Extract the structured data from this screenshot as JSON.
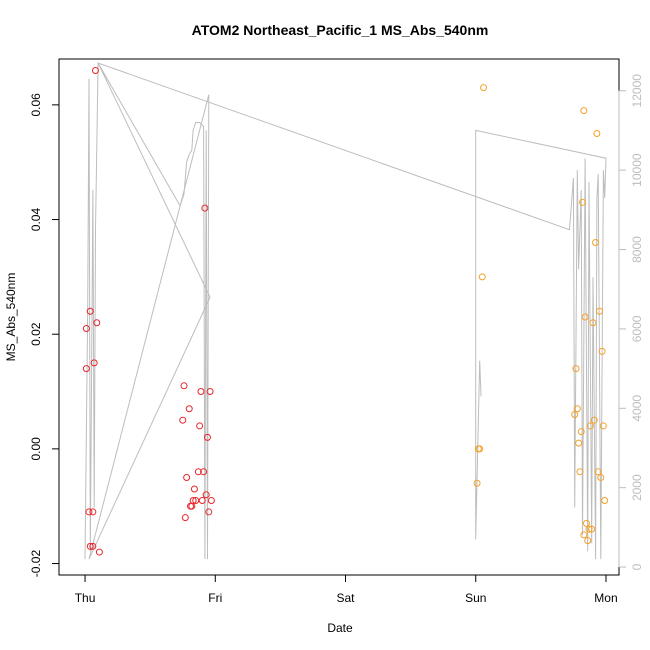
{
  "chart_data": {
    "type": "scatter",
    "title": "ATOM2 Northeast_Pacific_1 MS_Abs_540nm",
    "xlabel": "Date",
    "ylabel": "MS_Abs_540nm",
    "x_ticks": [
      "Thu",
      "Fri",
      "Sat",
      "Sun",
      "Mon"
    ],
    "x_range_days": [
      -0.2,
      4.1
    ],
    "ylim": [
      -0.022,
      0.068
    ],
    "y_ticks": [
      -0.02,
      0.0,
      0.02,
      0.04,
      0.06
    ],
    "y_tick_labels": [
      "-0.02",
      "0.00",
      "0.02",
      "0.04",
      "0.06"
    ],
    "y2_ticks": [
      0,
      2000,
      4000,
      6000,
      8000,
      10000,
      12000
    ],
    "y2_tick_labels": [
      "0",
      "2000",
      "4000",
      "6000",
      "8000",
      "10000",
      "12000"
    ],
    "y2lim": [
      -200,
      12800
    ],
    "grid": false,
    "colors": {
      "series_red": "#e8262b",
      "series_orange": "#f5a028",
      "secondary_line": "#bdbdbd"
    },
    "series": [
      {
        "color": "#e8262b",
        "points": [
          {
            "x": 0.01,
            "y": 0.014
          },
          {
            "x": 0.01,
            "y": 0.021
          },
          {
            "x": 0.03,
            "y": -0.011
          },
          {
            "x": 0.04,
            "y": 0.024
          },
          {
            "x": 0.04,
            "y": -0.017
          },
          {
            "x": 0.06,
            "y": -0.017
          },
          {
            "x": 0.06,
            "y": -0.011
          },
          {
            "x": 0.07,
            "y": 0.015
          },
          {
            "x": 0.08,
            "y": 0.066
          },
          {
            "x": 0.09,
            "y": 0.022
          },
          {
            "x": 0.11,
            "y": -0.018
          },
          {
            "x": 0.75,
            "y": 0.005
          },
          {
            "x": 0.76,
            "y": 0.011
          },
          {
            "x": 0.77,
            "y": -0.012
          },
          {
            "x": 0.78,
            "y": -0.005
          },
          {
            "x": 0.8,
            "y": 0.007
          },
          {
            "x": 0.81,
            "y": -0.01
          },
          {
            "x": 0.82,
            "y": -0.01
          },
          {
            "x": 0.83,
            "y": -0.009
          },
          {
            "x": 0.84,
            "y": -0.007
          },
          {
            "x": 0.85,
            "y": -0.009
          },
          {
            "x": 0.87,
            "y": -0.004
          },
          {
            "x": 0.88,
            "y": 0.004
          },
          {
            "x": 0.89,
            "y": 0.01
          },
          {
            "x": 0.9,
            "y": -0.009
          },
          {
            "x": 0.91,
            "y": -0.004
          },
          {
            "x": 0.92,
            "y": 0.042
          },
          {
            "x": 0.93,
            "y": -0.008
          },
          {
            "x": 0.94,
            "y": 0.002
          },
          {
            "x": 0.95,
            "y": -0.011
          },
          {
            "x": 0.96,
            "y": 0.01
          },
          {
            "x": 0.97,
            "y": -0.009
          }
        ]
      },
      {
        "color": "#f5a028",
        "points": [
          {
            "x": 3.01,
            "y": -0.006
          },
          {
            "x": 3.02,
            "y": 0.0
          },
          {
            "x": 3.03,
            "y": 0.0
          },
          {
            "x": 3.05,
            "y": 0.03
          },
          {
            "x": 3.06,
            "y": 0.063
          },
          {
            "x": 3.76,
            "y": 0.006
          },
          {
            "x": 3.77,
            "y": 0.014
          },
          {
            "x": 3.78,
            "y": 0.007
          },
          {
            "x": 3.79,
            "y": 0.001
          },
          {
            "x": 3.8,
            "y": -0.004
          },
          {
            "x": 3.81,
            "y": 0.003
          },
          {
            "x": 3.82,
            "y": 0.043
          },
          {
            "x": 3.83,
            "y": 0.059
          },
          {
            "x": 3.83,
            "y": -0.015
          },
          {
            "x": 3.84,
            "y": 0.023
          },
          {
            "x": 3.85,
            "y": -0.013
          },
          {
            "x": 3.86,
            "y": -0.016
          },
          {
            "x": 3.87,
            "y": -0.014
          },
          {
            "x": 3.88,
            "y": 0.004
          },
          {
            "x": 3.89,
            "y": -0.014
          },
          {
            "x": 3.9,
            "y": 0.022
          },
          {
            "x": 3.91,
            "y": 0.005
          },
          {
            "x": 3.92,
            "y": 0.036
          },
          {
            "x": 3.93,
            "y": 0.055
          },
          {
            "x": 3.94,
            "y": -0.004
          },
          {
            "x": 3.95,
            "y": 0.024
          },
          {
            "x": 3.96,
            "y": -0.005
          },
          {
            "x": 3.97,
            "y": 0.017
          },
          {
            "x": 3.98,
            "y": 0.004
          },
          {
            "x": 3.99,
            "y": -0.009
          }
        ]
      }
    ],
    "secondary_line": [
      {
        "x": 0.0,
        "y": 200
      },
      {
        "x": 0.02,
        "y": 6500
      },
      {
        "x": 0.03,
        "y": 12300
      },
      {
        "x": 0.04,
        "y": 400
      },
      {
        "x": 0.06,
        "y": 9500
      },
      {
        "x": 0.07,
        "y": 1500
      },
      {
        "x": 0.08,
        "y": 8500
      },
      {
        "x": 0.1,
        "y": 12700
      },
      {
        "x": 0.96,
        "y": 6800
      },
      {
        "x": 0.03,
        "y": 200
      },
      {
        "x": 0.95,
        "y": 11900
      },
      {
        "x": 0.94,
        "y": 200
      },
      {
        "x": 0.93,
        "y": 11000
      },
      {
        "x": 0.92,
        "y": 200
      },
      {
        "x": 0.91,
        "y": 11100
      },
      {
        "x": 0.88,
        "y": 11200
      },
      {
        "x": 0.85,
        "y": 11200
      },
      {
        "x": 0.83,
        "y": 11000
      },
      {
        "x": 0.82,
        "y": 10500
      },
      {
        "x": 0.8,
        "y": 10400
      },
      {
        "x": 0.78,
        "y": 10200
      },
      {
        "x": 0.76,
        "y": 9400
      },
      {
        "x": 0.74,
        "y": 9200
      },
      {
        "x": 0.73,
        "y": 9100
      },
      {
        "x": 0.1,
        "y": 12700
      },
      {
        "x": 3.72,
        "y": 8500
      },
      {
        "x": 3.75,
        "y": 9800
      },
      {
        "x": 3.76,
        "y": 1500
      },
      {
        "x": 3.78,
        "y": 10000
      },
      {
        "x": 3.79,
        "y": 7500
      },
      {
        "x": 3.81,
        "y": 9500
      },
      {
        "x": 3.82,
        "y": 800
      },
      {
        "x": 3.84,
        "y": 10300
      },
      {
        "x": 3.86,
        "y": 400
      },
      {
        "x": 3.87,
        "y": 9700
      },
      {
        "x": 3.89,
        "y": 600
      },
      {
        "x": 3.9,
        "y": 7300
      },
      {
        "x": 3.92,
        "y": 200
      },
      {
        "x": 3.93,
        "y": 9300
      },
      {
        "x": 3.94,
        "y": 9900
      },
      {
        "x": 3.96,
        "y": 200
      },
      {
        "x": 3.98,
        "y": 10000
      },
      {
        "x": 3.99,
        "y": 9300
      },
      {
        "x": 4.0,
        "y": 10300
      },
      {
        "x": 3.0,
        "y": 11000
      },
      {
        "x": 3.0,
        "y": 700
      },
      {
        "x": 3.03,
        "y": 5200
      },
      {
        "x": 3.04,
        "y": 4300
      }
    ]
  }
}
